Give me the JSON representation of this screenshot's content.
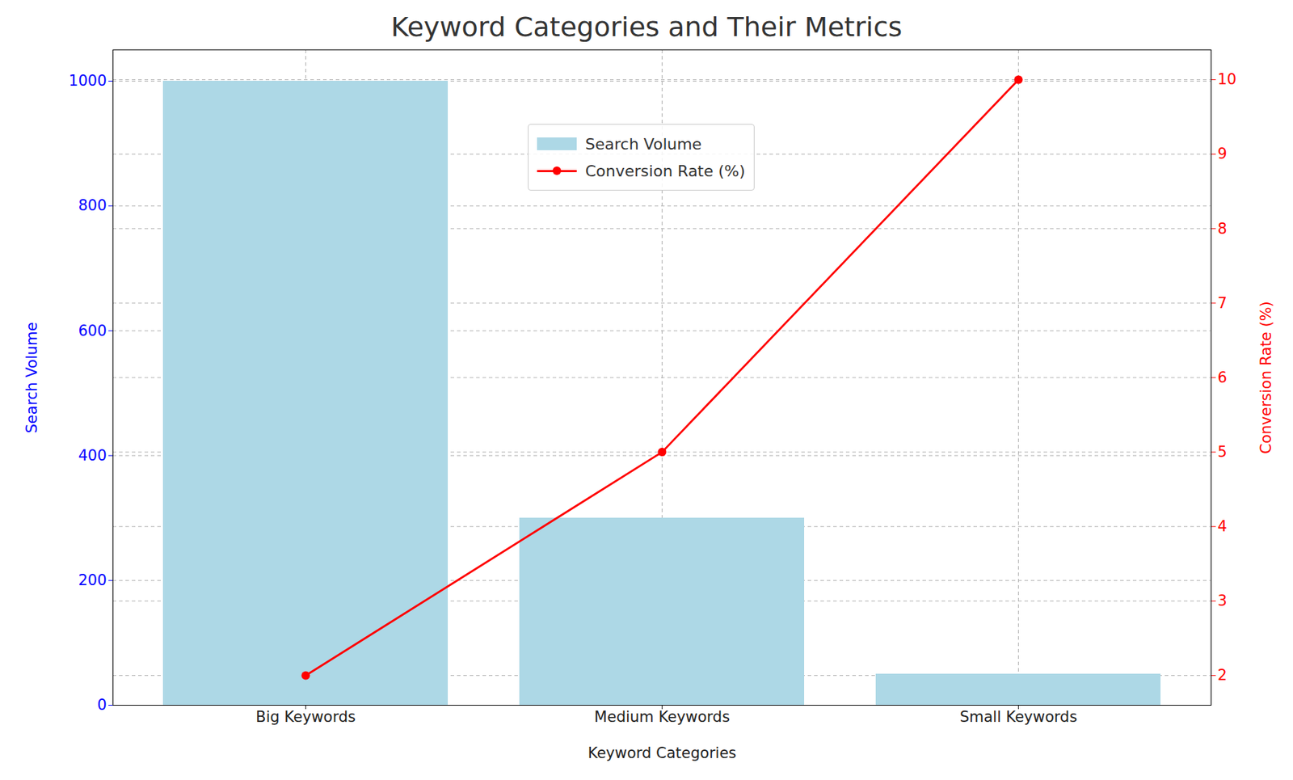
{
  "chart_data": {
    "type": "bar",
    "title": "Keyword Categories and Their Metrics",
    "x_label": "Keyword Categories",
    "y_label": "Search Volume",
    "y2_label": "Conversion Rate (%)",
    "categories": [
      "Big Keywords",
      "Medium Keywords",
      "Small Keywords"
    ],
    "series": [
      {
        "name": "Search Volume",
        "type": "bar",
        "color": "#add8e6",
        "axis": "y",
        "values": [
          1000,
          300,
          50
        ]
      },
      {
        "name": "Conversion Rate (%)",
        "type": "line",
        "color": "#ff0000",
        "marker": "circle",
        "axis": "y2",
        "values": [
          2,
          5,
          10
        ]
      }
    ],
    "ylim": [
      0,
      1050
    ],
    "yticks": [
      0,
      200,
      400,
      600,
      800,
      1000
    ],
    "y2lim": [
      1.6,
      10.4
    ],
    "y2ticks": [
      2,
      3,
      4,
      5,
      6,
      7,
      8,
      9,
      10
    ],
    "grid": true,
    "legend": "upper center"
  }
}
